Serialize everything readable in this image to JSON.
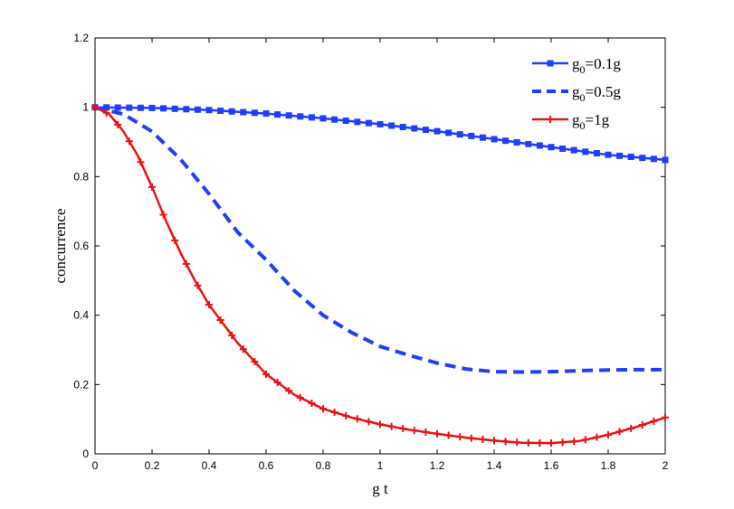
{
  "chart_data": {
    "type": "line",
    "xlabel": "g t",
    "ylabel": "concurrence",
    "xlim": [
      0,
      2
    ],
    "ylim": [
      0,
      1.2
    ],
    "xticks": [
      "0",
      "0.2",
      "0.4",
      "0.6",
      "0.8",
      "1",
      "1.2",
      "1.4",
      "1.6",
      "1.8",
      "2"
    ],
    "yticks": [
      "0",
      "0.2",
      "0.4",
      "0.6",
      "0.8",
      "1",
      "1.2"
    ],
    "grid": false,
    "legend_position": "top-right",
    "series": [
      {
        "legend_base": "g",
        "legend_sub": "0",
        "legend_rest": "=0.1g",
        "color": "#1f3fff",
        "line_style": "solid",
        "marker": "square",
        "x": [
          0,
          0.2,
          0.4,
          0.6,
          0.8,
          1.0,
          1.2,
          1.4,
          1.6,
          1.8,
          2.0
        ],
        "y": [
          1.0,
          0.998,
          0.992,
          0.982,
          0.968,
          0.951,
          0.931,
          0.908,
          0.885,
          0.863,
          0.848
        ]
      },
      {
        "legend_base": "g",
        "legend_sub": "0",
        "legend_rest": "=0.5g",
        "color": "#1f3fff",
        "line_style": "dashed",
        "marker": "none",
        "x": [
          0,
          0.1,
          0.2,
          0.3,
          0.4,
          0.5,
          0.6,
          0.7,
          0.8,
          0.9,
          1.0,
          1.1,
          1.2,
          1.3,
          1.4,
          1.5,
          1.6,
          1.7,
          1.8,
          1.9,
          2.0
        ],
        "y": [
          1.0,
          0.98,
          0.93,
          0.85,
          0.75,
          0.64,
          0.56,
          0.47,
          0.4,
          0.35,
          0.31,
          0.285,
          0.262,
          0.245,
          0.237,
          0.236,
          0.237,
          0.24,
          0.242,
          0.243,
          0.243
        ]
      },
      {
        "legend_base": "g",
        "legend_sub": "0",
        "legend_rest": "=1g",
        "color": "#ee1111",
        "line_style": "solid",
        "marker": "plus",
        "x": [
          0,
          0.05,
          0.1,
          0.15,
          0.2,
          0.25,
          0.3,
          0.35,
          0.4,
          0.5,
          0.6,
          0.7,
          0.8,
          0.9,
          1.0,
          1.1,
          1.2,
          1.3,
          1.4,
          1.5,
          1.6,
          1.7,
          1.8,
          1.9,
          2.0
        ],
        "y": [
          1.0,
          0.98,
          0.93,
          0.86,
          0.77,
          0.67,
          0.58,
          0.5,
          0.43,
          0.32,
          0.23,
          0.17,
          0.13,
          0.105,
          0.085,
          0.07,
          0.058,
          0.047,
          0.038,
          0.032,
          0.031,
          0.037,
          0.055,
          0.078,
          0.105
        ]
      }
    ]
  }
}
